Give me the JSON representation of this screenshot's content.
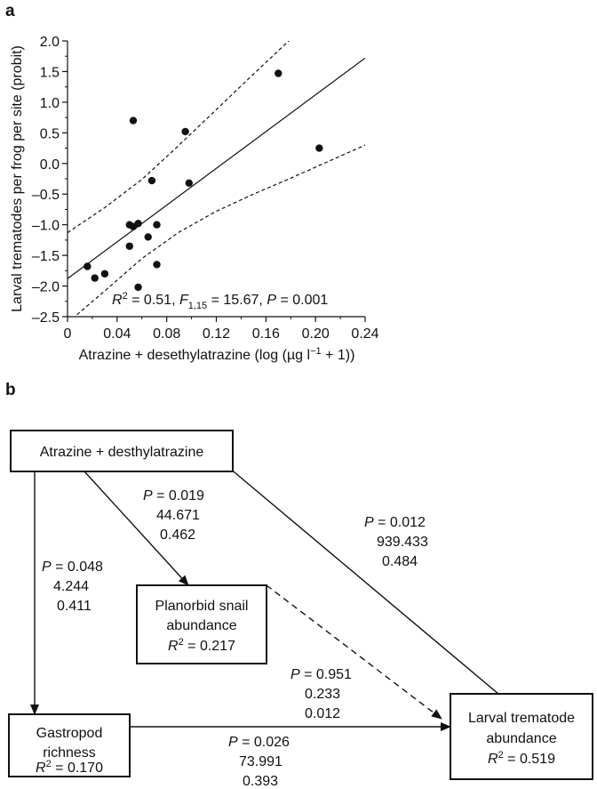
{
  "panels": {
    "a_label": "a",
    "b_label": "b"
  },
  "chart_data": {
    "type": "scatter",
    "xlabel": "Atrazine + desethylatrazine (log (µg l−1 + 1))",
    "ylabel": "Larval trematodes per frog per site (probit)",
    "xlim": [
      0,
      0.24
    ],
    "ylim": [
      -2.5,
      2.0
    ],
    "x_ticks": [
      0,
      0.04,
      0.08,
      0.12,
      0.16,
      0.2,
      0.24
    ],
    "x_tick_labels": [
      "0",
      "0.04",
      "0.08",
      "0.12",
      "0.16",
      "0.20",
      "0.24"
    ],
    "y_ticks": [
      2.0,
      1.5,
      1.0,
      0.5,
      0.0,
      -0.5,
      -1.0,
      -1.5,
      -2.0,
      -2.5
    ],
    "y_tick_labels": [
      "2.0",
      "1.5",
      "1.0",
      "0.5",
      "0.0",
      "–0.5",
      "–1.0",
      "–1.5",
      "–2.0",
      "–2.5"
    ],
    "points": [
      {
        "x": 0.016,
        "y": -1.68
      },
      {
        "x": 0.022,
        "y": -1.87
      },
      {
        "x": 0.03,
        "y": -1.8
      },
      {
        "x": 0.05,
        "y": -1.0
      },
      {
        "x": 0.05,
        "y": -1.35
      },
      {
        "x": 0.053,
        "y": -1.03
      },
      {
        "x": 0.053,
        "y": 0.7
      },
      {
        "x": 0.057,
        "y": -0.98
      },
      {
        "x": 0.057,
        "y": -2.02
      },
      {
        "x": 0.065,
        "y": -1.2
      },
      {
        "x": 0.068,
        "y": -0.28
      },
      {
        "x": 0.072,
        "y": -1.0
      },
      {
        "x": 0.072,
        "y": -1.65
      },
      {
        "x": 0.095,
        "y": 0.52
      },
      {
        "x": 0.098,
        "y": -0.32
      },
      {
        "x": 0.17,
        "y": 1.47
      },
      {
        "x": 0.203,
        "y": 0.25
      }
    ],
    "fit_line": {
      "intercept": -1.88,
      "slope": 15.0
    },
    "ci_upper": [
      {
        "x": 0.0,
        "y": -1.13
      },
      {
        "x": 0.03,
        "y": -0.72
      },
      {
        "x": 0.06,
        "y": -0.26
      },
      {
        "x": 0.09,
        "y": 0.3
      },
      {
        "x": 0.12,
        "y": 0.88
      },
      {
        "x": 0.15,
        "y": 1.46
      },
      {
        "x": 0.18,
        "y": 2.03
      }
    ],
    "ci_lower": [
      {
        "x": 0.0,
        "y": -2.6
      },
      {
        "x": 0.03,
        "y": -2.08
      },
      {
        "x": 0.06,
        "y": -1.55
      },
      {
        "x": 0.09,
        "y": -1.12
      },
      {
        "x": 0.12,
        "y": -0.78
      },
      {
        "x": 0.15,
        "y": -0.5
      },
      {
        "x": 0.18,
        "y": -0.24
      },
      {
        "x": 0.24,
        "y": 0.3
      }
    ],
    "annotation": "R2 = 0.51, F1,15 = 15.67, P = 0.001"
  },
  "diagram": {
    "nodes": {
      "atrazine": {
        "label": "Atrazine + desthylatrazine"
      },
      "snail": {
        "line1": "Planorbid snail",
        "line2": "abundance",
        "r2": "R2 = 0.217"
      },
      "gastropod": {
        "line1": "Gastropod",
        "line2": "richness",
        "r2": "R2 = 0.170"
      },
      "trematode": {
        "line1": "Larval trematode",
        "line2": "abundance",
        "r2": "R2 = 0.519"
      }
    },
    "paths": {
      "atrazine_snail": {
        "p": "P = 0.019",
        "v1": "44.671",
        "v2": "0.462"
      },
      "atrazine_trematode": {
        "p": "P = 0.012",
        "v1": "939.433",
        "v2": "0.484"
      },
      "atrazine_gastropod": {
        "p": "P = 0.048",
        "v1": "4.244",
        "v2": "0.411"
      },
      "snail_trematode": {
        "p": "P = 0.951",
        "v1": "0.233",
        "v2": "0.012"
      },
      "gastropod_trematode": {
        "p": "P = 0.026",
        "v1": "73.991",
        "v2": "0.393"
      }
    }
  }
}
